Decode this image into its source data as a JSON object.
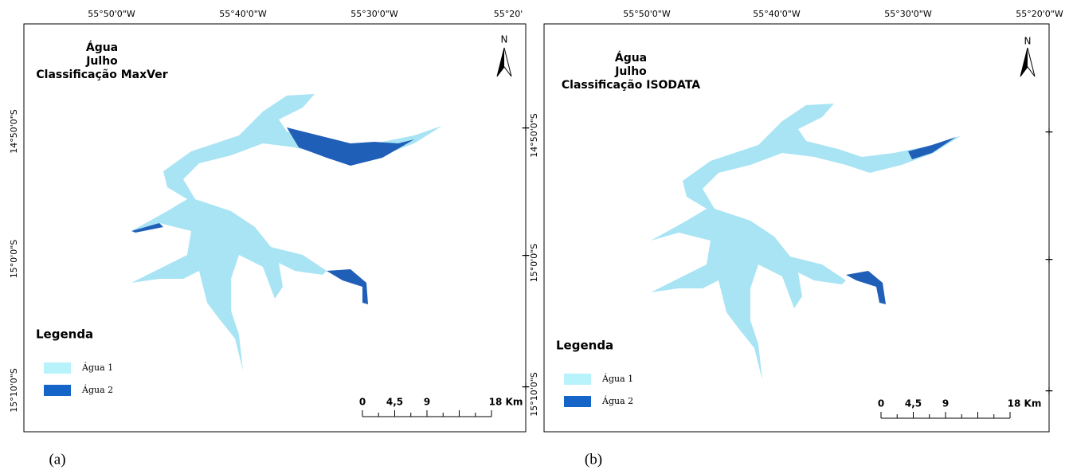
{
  "panels": [
    {
      "title": [
        "Água",
        "Julho",
        "Classificação MaxVer"
      ],
      "top_labels": [
        "55°50'0\"W",
        "55°40'0\"W",
        "55°30'0\"W",
        "55°20'"
      ],
      "left_labels": [
        "14°50'0\"S",
        "15°0'0\"S",
        "15°10'0\"S"
      ],
      "north": "N",
      "legend": {
        "title": "Legenda",
        "items": [
          "Água 1",
          "Água 2"
        ]
      },
      "scale": [
        "0",
        "4,5",
        "9",
        "18 Km"
      ],
      "caption": "(a)"
    },
    {
      "title": [
        "Água",
        "Julho",
        "Classificação ISODATA"
      ],
      "top_labels": [
        "55°50'0\"W",
        "55°40'0\"W",
        "55°30'0\"W",
        "55°20'0\"W"
      ],
      "left_labels": [
        "14°50'0\"S",
        "15°0'0\"S",
        "15°10'0\"S"
      ],
      "north": "N",
      "legend": {
        "title": "Legenda",
        "items": [
          "Água 1",
          "Água 2"
        ]
      },
      "scale": [
        "0",
        "4,5",
        "9",
        "18 Km"
      ],
      "caption": "(b)"
    }
  ]
}
